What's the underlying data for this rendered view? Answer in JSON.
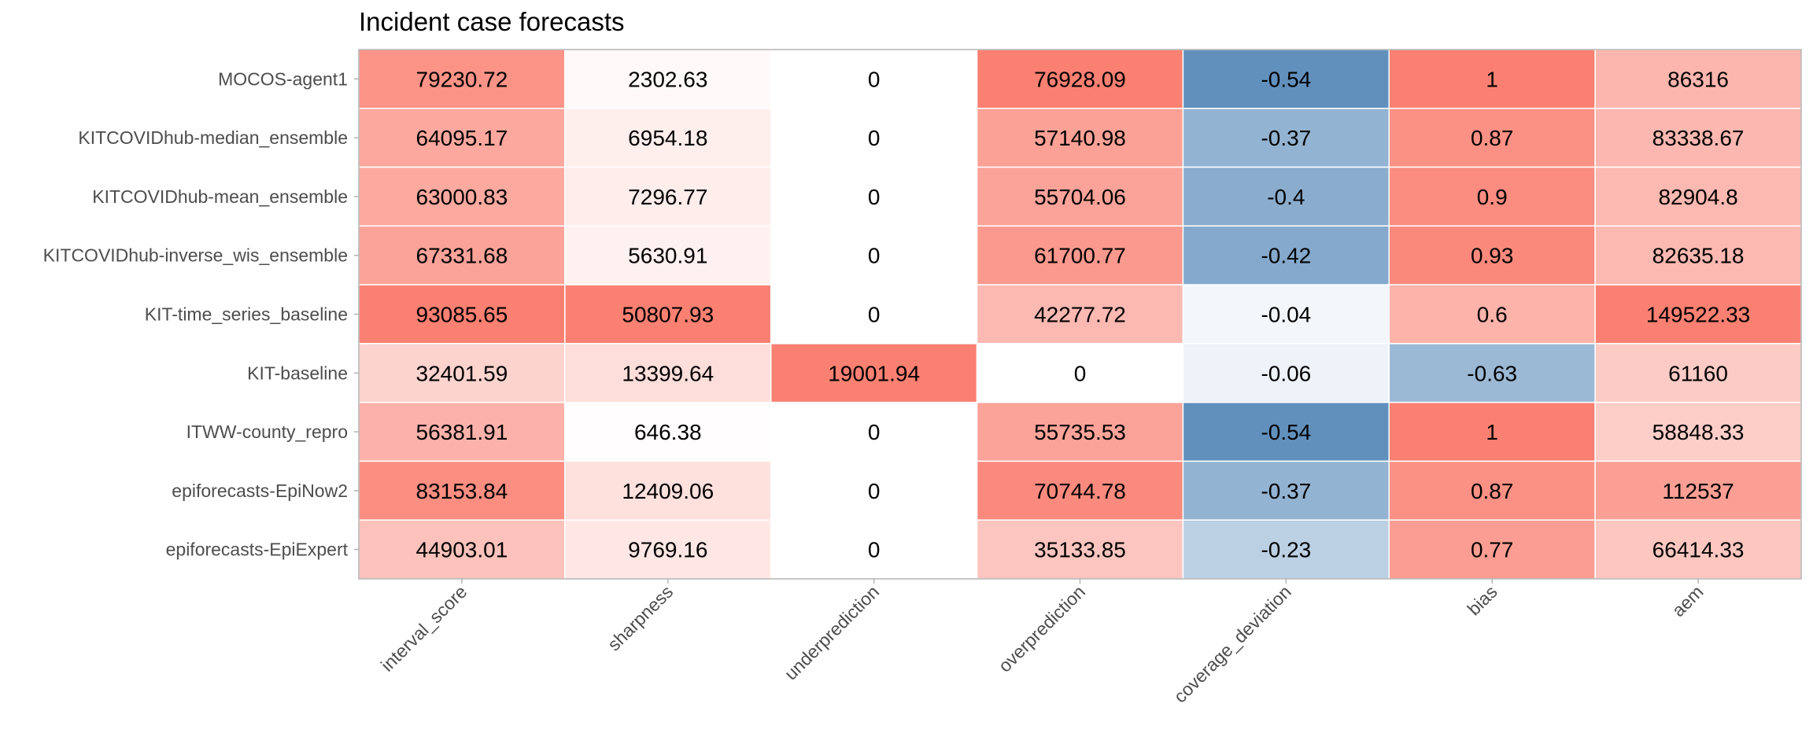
{
  "chart_data": {
    "type": "heatmap",
    "title": "Incident case forecasts",
    "xlabel": "",
    "ylabel": "",
    "grid": false,
    "legend": "none",
    "colors": {
      "high": "#fa8072",
      "low": "#6190bd",
      "neutral": "#ffffff",
      "panel_border": "#b3b3b3",
      "axis_text": "#4d4d4d"
    },
    "rows": [
      "MOCOS-agent1",
      "KITCOVIDhub-median_ensemble",
      "KITCOVIDhub-mean_ensemble",
      "KITCOVIDhub-inverse_wis_ensemble",
      "KIT-time_series_baseline",
      "KIT-baseline",
      "ITWW-county_repro",
      "epiforecasts-EpiNow2",
      "epiforecasts-EpiExpert"
    ],
    "columns": [
      "interval_score",
      "sharpness",
      "underprediction",
      "overprediction",
      "coverage_deviation",
      "bias",
      "aem"
    ],
    "values": [
      [
        79230.72,
        2302.63,
        0,
        76928.09,
        -0.54,
        1,
        86316
      ],
      [
        64095.17,
        6954.18,
        0,
        57140.98,
        -0.37,
        0.87,
        83338.67
      ],
      [
        63000.83,
        7296.77,
        0,
        55704.06,
        -0.4,
        0.9,
        82904.8
      ],
      [
        67331.68,
        5630.91,
        0,
        61700.77,
        -0.42,
        0.93,
        82635.18
      ],
      [
        93085.65,
        50807.93,
        0,
        42277.72,
        -0.04,
        0.6,
        149522.33
      ],
      [
        32401.59,
        13399.64,
        19001.94,
        0,
        -0.06,
        -0.63,
        61160
      ],
      [
        56381.91,
        646.38,
        0,
        55735.53,
        -0.54,
        1,
        58848.33
      ],
      [
        83153.84,
        12409.06,
        0,
        70744.78,
        -0.37,
        0.87,
        112537
      ],
      [
        44903.01,
        9769.16,
        0,
        35133.85,
        -0.23,
        0.77,
        66414.33
      ]
    ],
    "cell_labels": [
      [
        "79230.72",
        "2302.63",
        "0",
        "76928.09",
        "-0.54",
        "1",
        "86316"
      ],
      [
        "64095.17",
        "6954.18",
        "0",
        "57140.98",
        "-0.37",
        "0.87",
        "83338.67"
      ],
      [
        "63000.83",
        "7296.77",
        "0",
        "55704.06",
        "-0.4",
        "0.9",
        "82904.8"
      ],
      [
        "67331.68",
        "5630.91",
        "0",
        "61700.77",
        "-0.42",
        "0.93",
        "82635.18"
      ],
      [
        "93085.65",
        "50807.93",
        "0",
        "42277.72",
        "-0.04",
        "0.6",
        "149522.33"
      ],
      [
        "32401.59",
        "13399.64",
        "19001.94",
        "0",
        "-0.06",
        "-0.63",
        "61160"
      ],
      [
        "56381.91",
        "646.38",
        "0",
        "55735.53",
        "-0.54",
        "1",
        "58848.33"
      ],
      [
        "83153.84",
        "12409.06",
        "0",
        "70744.78",
        "-0.37",
        "0.87",
        "112537"
      ],
      [
        "44903.01",
        "9769.16",
        "0",
        "35133.85",
        "-0.23",
        "0.77",
        "66414.33"
      ]
    ]
  }
}
